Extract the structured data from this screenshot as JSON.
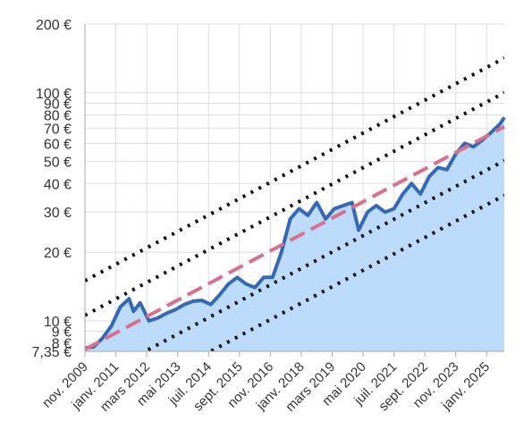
{
  "chart_data": {
    "type": "area",
    "y_scale": "log",
    "ylim": [
      7.35,
      200
    ],
    "y_ticks": [
      {
        "value": 200,
        "label": "200 €"
      },
      {
        "value": 100,
        "label": "100 €"
      },
      {
        "value": 90,
        "label": "90 €"
      },
      {
        "value": 80,
        "label": "80 €"
      },
      {
        "value": 70,
        "label": "70 €"
      },
      {
        "value": 60,
        "label": "60 €"
      },
      {
        "value": 50,
        "label": "50 €"
      },
      {
        "value": 40,
        "label": "40 €"
      },
      {
        "value": 30,
        "label": "30 €"
      },
      {
        "value": 20,
        "label": "20 €"
      },
      {
        "value": 10,
        "label": "10 €"
      },
      {
        "value": 9,
        "label": "9 €"
      },
      {
        "value": 8,
        "label": "8 €"
      },
      {
        "value": 7.35,
        "label": "7,35 €"
      }
    ],
    "x_ticks": [
      {
        "date": "2009-11",
        "label": "nov. 2009"
      },
      {
        "date": "2011-01",
        "label": "janv. 2011"
      },
      {
        "date": "2012-03",
        "label": "mars 2012"
      },
      {
        "date": "2013-05",
        "label": "mai 2013"
      },
      {
        "date": "2014-07",
        "label": "juil. 2014"
      },
      {
        "date": "2015-09",
        "label": "sept. 2015"
      },
      {
        "date": "2016-11",
        "label": "nov. 2016"
      },
      {
        "date": "2018-01",
        "label": "janv. 2018"
      },
      {
        "date": "2019-03",
        "label": "mars 2019"
      },
      {
        "date": "2020-05",
        "label": "mai 2020"
      },
      {
        "date": "2021-07",
        "label": "juil. 2021"
      },
      {
        "date": "2022-09",
        "label": "sept. 2022"
      },
      {
        "date": "2023-11",
        "label": "nov. 2023"
      },
      {
        "date": "2025-01",
        "label": "janv. 2025"
      }
    ],
    "xlim": [
      "2009-11",
      "2025-09"
    ],
    "series": [
      {
        "kind": "price",
        "x": [
          "2009-11",
          "2010-03",
          "2010-07",
          "2010-11",
          "2011-03",
          "2011-07",
          "2011-09",
          "2011-12",
          "2012-04",
          "2012-08",
          "2012-12",
          "2013-04",
          "2013-08",
          "2013-12",
          "2014-04",
          "2014-08",
          "2014-12",
          "2015-04",
          "2015-08",
          "2015-12",
          "2016-04",
          "2016-08",
          "2016-12",
          "2017-04",
          "2017-08",
          "2017-12",
          "2018-04",
          "2018-08",
          "2018-12",
          "2019-04",
          "2019-08",
          "2019-12",
          "2020-03",
          "2020-07",
          "2020-11",
          "2021-03",
          "2021-07",
          "2021-11",
          "2022-03",
          "2022-07",
          "2022-11",
          "2023-03",
          "2023-07",
          "2023-11",
          "2024-03",
          "2024-07",
          "2024-11",
          "2025-03",
          "2025-07",
          "2025-09"
        ],
        "values": [
          7.6,
          7.7,
          8.4,
          9.5,
          11.5,
          12.5,
          11,
          12,
          10,
          10.3,
          10.8,
          11.2,
          11.8,
          12.2,
          12.3,
          11.8,
          13,
          14.5,
          15.5,
          14.5,
          14,
          15.5,
          15.5,
          20,
          28,
          31,
          29,
          33,
          28,
          31,
          32,
          33,
          25,
          30,
          32,
          30,
          31,
          36,
          40,
          36,
          43,
          47,
          46,
          54,
          60,
          58,
          62,
          67,
          73,
          78
        ]
      },
      {
        "kind": "trend",
        "x": [
          "2009-11",
          "2025-09"
        ],
        "values": [
          7.5,
          71
        ]
      }
    ],
    "channels": [
      {
        "offset_factor": 2.0
      },
      {
        "offset_factor": 1.41
      },
      {
        "offset_factor": 0.71
      },
      {
        "offset_factor": 0.5
      }
    ],
    "grid": true,
    "legend": "none"
  },
  "colors": {
    "area_fill": "#bcdaf9",
    "price_line": "#3569b3",
    "trend_line": "#d9708e",
    "channel_dots": "#111111",
    "grid": "#dddddd",
    "axis": "#aaaaaa"
  }
}
